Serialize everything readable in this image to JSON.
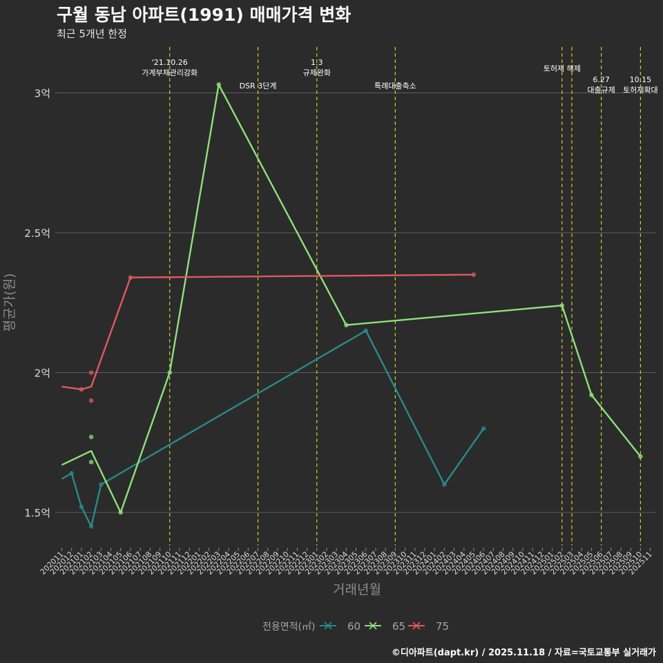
{
  "header": {
    "title": "구월 동남 아파트(1991) 매매가격 변화",
    "subtitle": "최근 5개년 한정"
  },
  "caption": "©디아파트(dapt.kr) / 2025.11.18 / 자료=국토교통부 실거래가",
  "colors": {
    "background": "#2b2b2b",
    "grid": "#5e5e5e",
    "policy_line": "#c8d22a",
    "tick_text": "#d9d9d9",
    "axis_title": "#8c8c8c",
    "series_60": "#2a8a8a",
    "series_65": "#8ee27b",
    "series_75": "#e05a5e"
  },
  "chart_data": {
    "type": "line",
    "title": "구월 동남 아파트(1991) 매매가격 변화",
    "subtitle": "최근 5개년 한정",
    "xlabel": "거래년월",
    "ylabel": "평균가(원)",
    "y_unit": "억",
    "ylim": [
      1.38,
      3.15
    ],
    "yticks": [
      {
        "value": 1.5,
        "label": "1.5억"
      },
      {
        "value": 2.0,
        "label": "2억"
      },
      {
        "value": 2.5,
        "label": "2.5억"
      },
      {
        "value": 3.0,
        "label": "3억"
      }
    ],
    "grid": true,
    "legend_title": "전용면적(㎡)",
    "legend_position": "bottom",
    "categories": [
      "202011",
      "202012",
      "202101",
      "202102",
      "202103",
      "202104",
      "202105",
      "202106",
      "202107",
      "202108",
      "202109",
      "202110",
      "202111",
      "202112",
      "202201",
      "202202",
      "202203",
      "202204",
      "202205",
      "202206",
      "202207",
      "202208",
      "202209",
      "202210",
      "202211",
      "202212",
      "202301",
      "202302",
      "202303",
      "202304",
      "202305",
      "202306",
      "202307",
      "202308",
      "202309",
      "202310",
      "202311",
      "202312",
      "202401",
      "202402",
      "202403",
      "202404",
      "202405",
      "202406",
      "202407",
      "202408",
      "202409",
      "202410",
      "202411",
      "202412",
      "202501",
      "202502",
      "202503",
      "202504",
      "202505",
      "202506",
      "202507",
      "202508",
      "202509",
      "202510",
      "202511"
    ],
    "series": [
      {
        "name": "60",
        "color_key": "series_60",
        "line": [
          [
            "202011",
            1.62
          ],
          [
            "202012",
            1.64
          ],
          [
            "202101",
            1.52
          ],
          [
            "202102",
            1.45
          ],
          [
            "202103",
            1.6
          ],
          [
            "202306",
            2.15
          ],
          [
            "202402",
            1.6
          ],
          [
            "202406",
            1.8
          ]
        ],
        "points": [
          [
            "202012",
            1.64
          ],
          [
            "202101",
            1.52
          ],
          [
            "202102",
            1.45
          ],
          [
            "202103",
            1.6
          ],
          [
            "202306",
            2.15
          ],
          [
            "202402",
            1.6
          ],
          [
            "202406",
            1.8
          ]
        ]
      },
      {
        "name": "65",
        "color_key": "series_65",
        "line": [
          [
            "202011",
            1.67
          ],
          [
            "202102",
            1.72
          ],
          [
            "202105",
            1.5
          ],
          [
            "202110",
            2.0
          ],
          [
            "202203",
            3.03
          ],
          [
            "202304",
            2.17
          ],
          [
            "202502",
            2.24
          ],
          [
            "202505",
            1.92
          ],
          [
            "202510",
            1.7
          ]
        ],
        "points": [
          [
            "202102",
            1.77
          ],
          [
            "202102",
            1.68
          ],
          [
            "202105",
            1.5
          ],
          [
            "202110",
            2.0
          ],
          [
            "202203",
            3.03
          ],
          [
            "202304",
            2.17
          ],
          [
            "202502",
            2.24
          ],
          [
            "202505",
            1.92
          ],
          [
            "202510",
            1.7
          ]
        ]
      },
      {
        "name": "75",
        "color_key": "series_75",
        "line": [
          [
            "202011",
            1.95
          ],
          [
            "202101",
            1.94
          ],
          [
            "202102",
            1.95
          ],
          [
            "202106",
            2.34
          ],
          [
            "202405",
            2.35
          ]
        ],
        "points": [
          [
            "202101",
            1.94
          ],
          [
            "202102",
            2.0
          ],
          [
            "202102",
            1.9
          ],
          [
            "202106",
            2.34
          ],
          [
            "202405",
            2.35
          ]
        ]
      }
    ],
    "events": [
      {
        "month": "202110",
        "lines": [
          "'21.10.26",
          "가계부채관리강화"
        ],
        "row": 0
      },
      {
        "month": "202207",
        "lines": [
          "DSR 3단계"
        ],
        "row": 2
      },
      {
        "month": "202301",
        "lines": [
          "1.3",
          "규제완화"
        ],
        "row": 0
      },
      {
        "month": "202309",
        "lines": [
          "특례대출축소"
        ],
        "row": 2
      },
      {
        "month": "202502",
        "lines": [
          "토허제 해제"
        ],
        "row": 1
      },
      {
        "month": "202503",
        "lines": [],
        "row": 1
      },
      {
        "month": "202506",
        "lines": [
          "6.27",
          "대출규제"
        ],
        "row": 3
      },
      {
        "month": "202510",
        "lines": [
          "10.15",
          "토허제확대"
        ],
        "row": 3
      }
    ]
  }
}
